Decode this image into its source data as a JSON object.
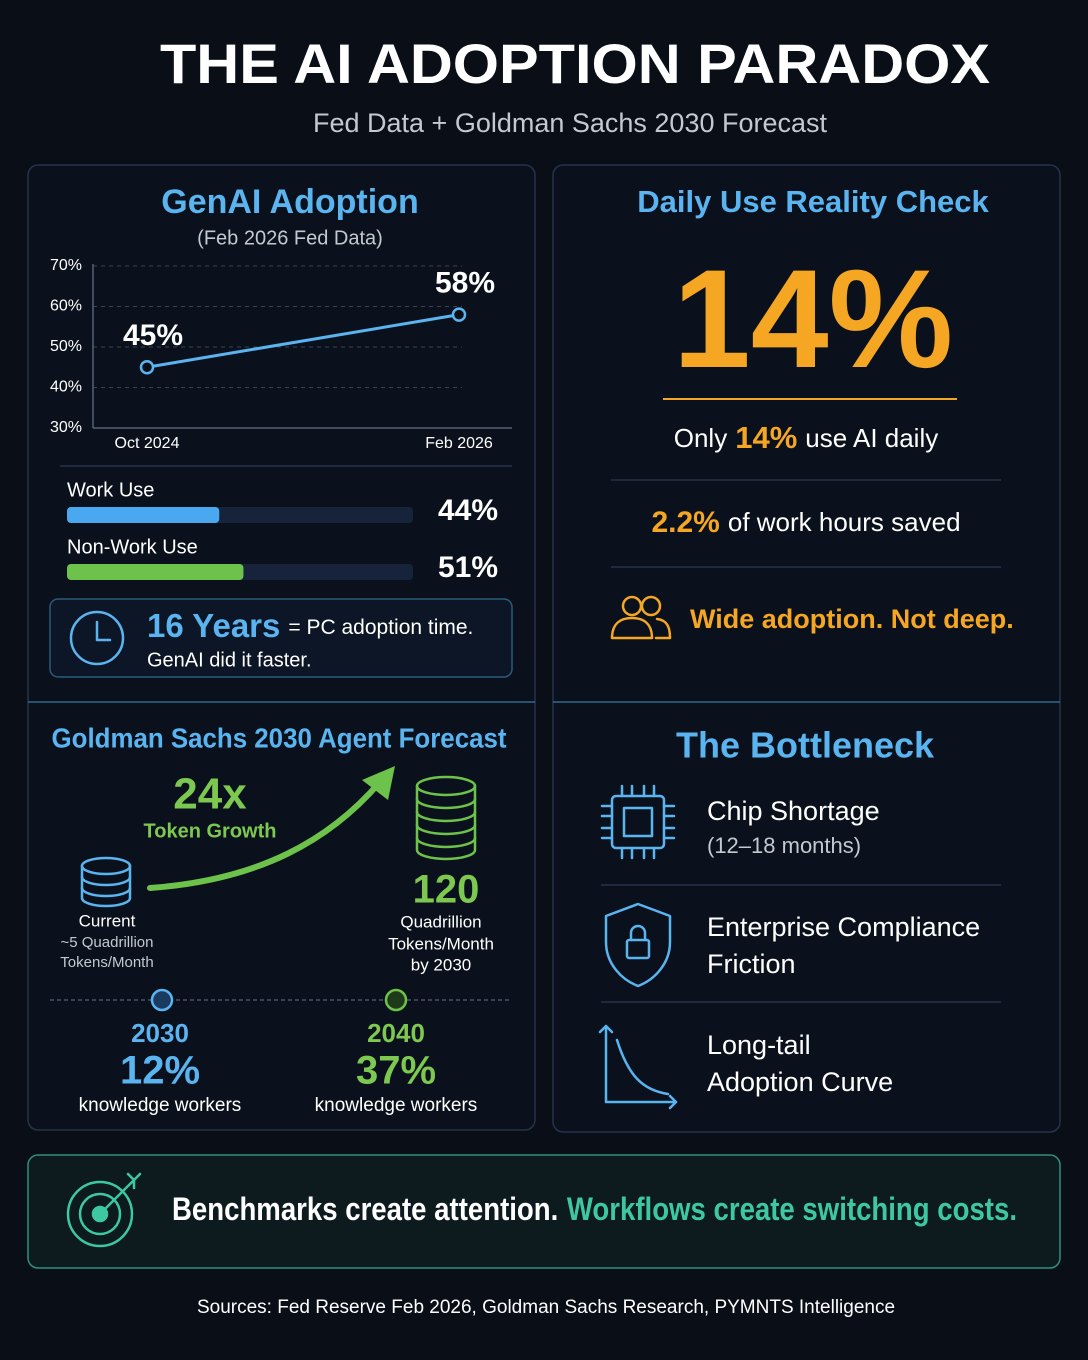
{
  "header": {
    "title": "THE AI ADOPTION PARADOX",
    "subtitle": "Fed Data + Goldman Sachs 2030 Forecast"
  },
  "chart_data": {
    "type": "line",
    "title": "GenAI Adoption",
    "subtitle": "(Feb 2026 Fed Data)",
    "categories": [
      "Oct 2024",
      "Feb 2026"
    ],
    "values": [
      45,
      58
    ],
    "value_labels": [
      "45%",
      "58%"
    ],
    "color": "#5ab4f0",
    "ylim": [
      30,
      70
    ],
    "yticks": [
      {
        "value": 30,
        "label": "30%"
      },
      {
        "value": 40,
        "label": "40%"
      },
      {
        "value": 50,
        "label": "50%"
      },
      {
        "value": 60,
        "label": "60%"
      },
      {
        "value": 70,
        "label": "70%"
      }
    ],
    "grid": true
  },
  "usage": [
    {
      "label": "Work Use",
      "value": 44,
      "value_label": "44%",
      "color": "#4aa8f0"
    },
    {
      "label": "Non-Work Use",
      "value": 51,
      "value_label": "51%",
      "color": "#6cc24a"
    }
  ],
  "pc_note": {
    "highlight": "16 Years",
    "text": "= PC adoption time.",
    "line2": "GenAI did it faster."
  },
  "daily": {
    "title": "Daily Use Reality Check",
    "big": "14%",
    "only_pre": "Only",
    "only_value": "14%",
    "only_post": "use AI daily",
    "hours_value": "2.2%",
    "hours_text": "of work hours saved",
    "note": "Wide adoption. Not deep."
  },
  "forecast": {
    "title": "Goldman Sachs 2030 Agent Forecast",
    "growth": "24x",
    "growth_label": "Token Growth",
    "current": [
      "Current",
      "~5 Quadrillion",
      "Tokens/Month"
    ],
    "future_value": "120",
    "future": [
      "Quadrillion",
      "Tokens/Month",
      "by 2030"
    ],
    "milestones": [
      {
        "year": "2030",
        "share": "12%",
        "label": "knowledge workers"
      },
      {
        "year": "2040",
        "share": "37%",
        "label": "knowledge workers"
      }
    ]
  },
  "bottleneck": {
    "title": "The Bottleneck",
    "items": [
      {
        "lines": [
          "Chip Shortage"
        ],
        "detail": "(12–18 months)"
      },
      {
        "lines": [
          "Enterprise Compliance",
          "Friction"
        ]
      },
      {
        "lines": [
          "Long-tail",
          "Adoption Curve"
        ]
      }
    ]
  },
  "footer": {
    "statement": "Benchmarks create attention.",
    "emphasis": "Workflows create switching costs.",
    "sources": "Sources: Fed Reserve Feb 2026, Goldman Sachs Research, PYMNTS Intelligence"
  }
}
